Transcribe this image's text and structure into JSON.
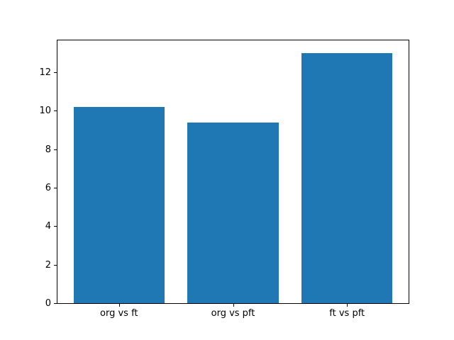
{
  "chart_data": {
    "type": "bar",
    "title": "",
    "xlabel": "",
    "ylabel": "",
    "categories": [
      "org vs ft",
      "org vs pft",
      "ft vs pft"
    ],
    "values": [
      10.2,
      9.4,
      13.0
    ],
    "ylim": [
      0,
      13.65
    ],
    "yticks": [
      0,
      2,
      4,
      6,
      8,
      10,
      12
    ],
    "bar_color": "#1f77b4",
    "axis_color": "#000000",
    "background_color": "#ffffff",
    "grid": false,
    "legend": "none",
    "bar_width_fraction": 0.8
  }
}
